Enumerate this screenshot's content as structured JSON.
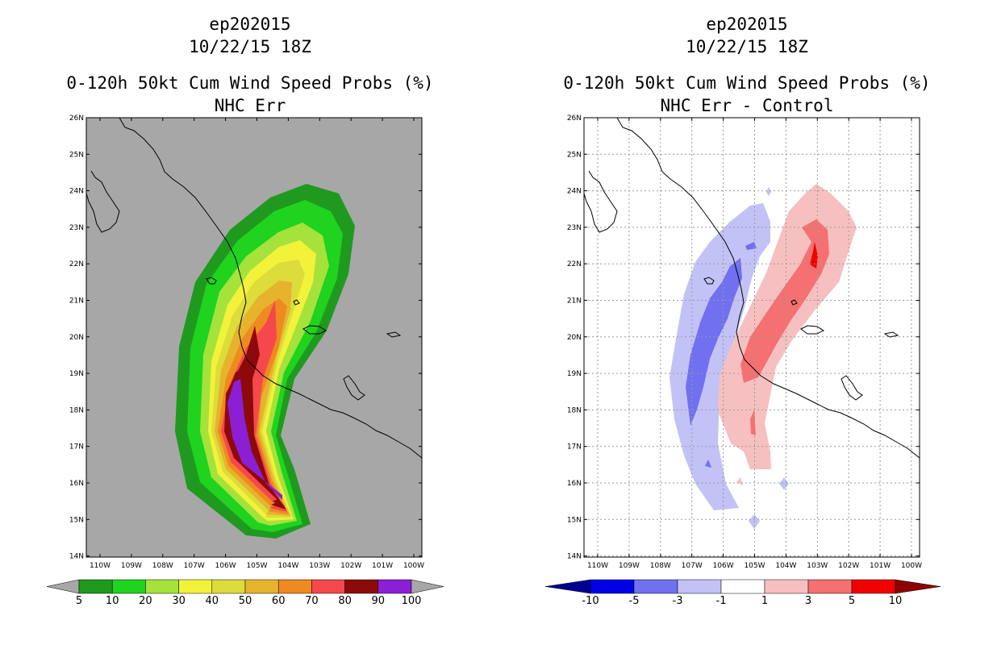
{
  "left_panel": {
    "storm_id": "ep202015",
    "datetime": "10/22/15 18Z",
    "product": "0-120h 50kt Cum Wind Speed Probs (%)",
    "subtitle": "NHC Err",
    "background_color": "#a7a7a7",
    "colorbar": {
      "labels": [
        "5",
        "10",
        "20",
        "30",
        "40",
        "50",
        "60",
        "70",
        "80",
        "90",
        "100"
      ],
      "colors": [
        "#1f9a1f",
        "#1fd31f",
        "#a5e23b",
        "#f2f23b",
        "#dcdc3b",
        "#e6b32d",
        "#ee8a1f",
        "#f5484c",
        "#8c0a0a",
        "#8a1fd6"
      ],
      "end_color": "#a7a7a7"
    }
  },
  "right_panel": {
    "storm_id": "ep202015",
    "datetime": "10/22/15 18Z",
    "product": "0-120h 50kt Cum Wind Speed Probs (%)",
    "subtitle": "NHC Err - Control",
    "background_color": "#ffffff",
    "colorbar": {
      "labels": [
        "-10",
        "-5",
        "-3",
        "-1",
        "1",
        "3",
        "5",
        "10"
      ],
      "colors": [
        "#0000e6",
        "#7070f0",
        "#c2c2f7",
        "#ffffff",
        "#f7c0c0",
        "#f57070",
        "#f00000"
      ],
      "end_low_color": "#000090",
      "end_high_color": "#8c0000"
    }
  },
  "axes": {
    "lat_labels": [
      "26N",
      "25N",
      "24N",
      "23N",
      "22N",
      "21N",
      "20N",
      "19N",
      "18N",
      "17N",
      "16N",
      "15N",
      "14N"
    ],
    "lon_labels": [
      "110W",
      "109W",
      "108W",
      "107W",
      "106W",
      "105W",
      "104W",
      "103W",
      "102W",
      "101W",
      "100W"
    ]
  }
}
